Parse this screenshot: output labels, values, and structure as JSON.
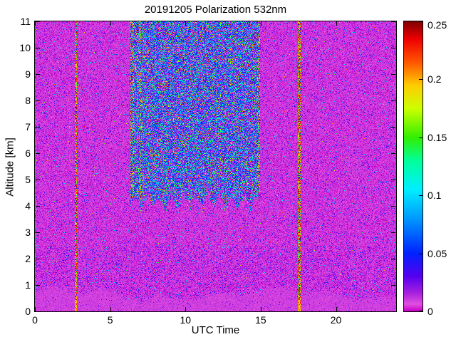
{
  "figure": {
    "title": "20191205 Polarization 532nm",
    "xlabel": "UTC Time",
    "ylabel": "Altitude [km]"
  },
  "chart_data": {
    "type": "heatmap",
    "title": "20191205 Polarization 532nm",
    "xlabel": "UTC Time",
    "ylabel": "Altitude [km]",
    "x_range": [
      0,
      24
    ],
    "y_range": [
      0,
      11
    ],
    "x_ticks": [
      0,
      5,
      10,
      15,
      20
    ],
    "y_ticks": [
      0,
      1,
      2,
      3,
      4,
      5,
      6,
      7,
      8,
      9,
      10,
      11
    ],
    "colorbar": {
      "min": 0,
      "max": 0.25,
      "ticks": [
        0,
        0.05,
        0.1,
        0.15,
        0.2,
        0.25
      ],
      "tick_labels": [
        "0",
        "0.05",
        "0.1",
        "0.15",
        "0.2",
        "0.25"
      ]
    },
    "colormap_stops": [
      {
        "v": 0.0,
        "color": "#c800c8"
      },
      {
        "v": 0.006,
        "color": "#e050e0"
      },
      {
        "v": 0.015,
        "color": "#aa22dd"
      },
      {
        "v": 0.03,
        "color": "#5500ee"
      },
      {
        "v": 0.05,
        "color": "#0022ff"
      },
      {
        "v": 0.08,
        "color": "#0099ff"
      },
      {
        "v": 0.105,
        "color": "#00eeff"
      },
      {
        "v": 0.13,
        "color": "#00ff99"
      },
      {
        "v": 0.15,
        "color": "#33ee00"
      },
      {
        "v": 0.175,
        "color": "#ccff00"
      },
      {
        "v": 0.195,
        "color": "#ffcc00"
      },
      {
        "v": 0.215,
        "color": "#ff5500"
      },
      {
        "v": 0.235,
        "color": "#ee0000"
      },
      {
        "v": 0.25,
        "color": "#800000"
      }
    ],
    "noise_seed": 20191205,
    "background_value_typical": 0.005,
    "elevated_noise_region": {
      "t_min": 6.3,
      "t_max": 14.9,
      "alt_min": 4.2
    },
    "edge_streaks": [
      {
        "t_min": 6.3,
        "t_max": 7.05,
        "alt_min": 4.3
      },
      {
        "t_min": 14.5,
        "t_max": 14.95,
        "alt_min": 4.5
      }
    ],
    "vertical_stripes": [
      {
        "t": 2.7,
        "width": 0.18,
        "alt_min": 0,
        "alt_max": 11
      },
      {
        "t": 17.55,
        "width": 0.18,
        "alt_min": 0,
        "alt_max": 11
      }
    ],
    "boundary_layer": {
      "alt_max": 0.85
    },
    "features": [
      "magenta low-depolarization background with speckle noise over full day",
      "high-noise blue/cyan speckle block between about 06:30 and 15:00 UTC above ~4 km",
      "strong multicolor vertical streaks at the edges of the noisy block near 6.5 and 14.7 UTC",
      "two narrow dark-red/yellow vertical stripes near 2.7 and 17.5 UTC spanning all altitudes",
      "bright magenta boundary layer below ~1 km across the whole day"
    ]
  }
}
